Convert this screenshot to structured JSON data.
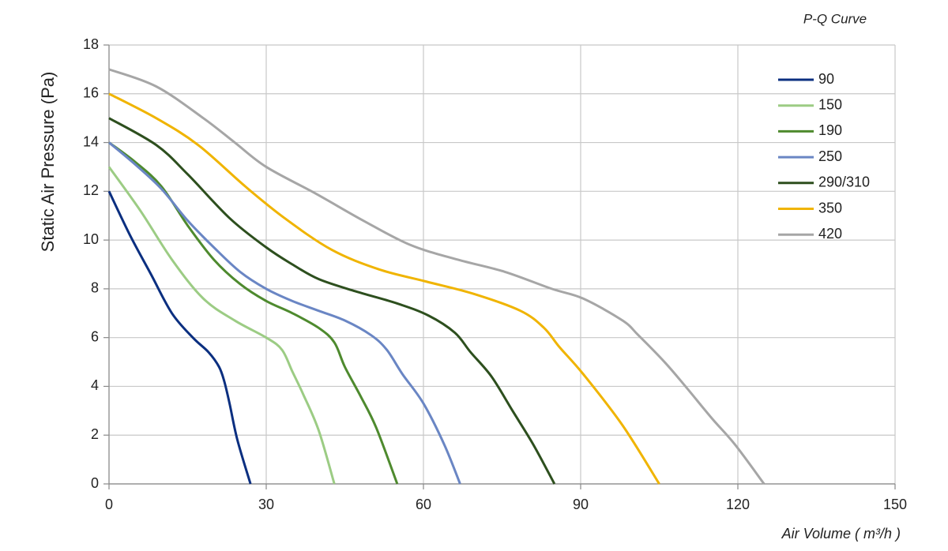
{
  "chart_data": {
    "type": "line",
    "title": "P-Q Curve",
    "x_label": "Air Volume ( m³/h )",
    "y_label": "Static Air Pressure  (Pa)",
    "xlim": [
      0,
      150
    ],
    "xticks": [
      0,
      30,
      60,
      90,
      120,
      150
    ],
    "ylim": [
      0,
      18
    ],
    "yticks": [
      0,
      2,
      4,
      6,
      8,
      10,
      12,
      14,
      16,
      18
    ],
    "grid": true,
    "legend": "upper right",
    "series": [
      {
        "name": "90",
        "color": "#0b2f80",
        "x": [
          0,
          4,
          8,
          12,
          16,
          19,
          21,
          22,
          23,
          24.5,
          27
        ],
        "values": [
          12,
          10.2,
          8.6,
          7,
          6,
          5.4,
          4.8,
          4.2,
          3.3,
          1.8,
          0
        ]
      },
      {
        "name": "150",
        "color": "#9ccc84",
        "x": [
          0,
          6,
          12,
          18,
          24,
          30,
          33,
          35,
          37,
          40,
          43
        ],
        "values": [
          13,
          11.2,
          9.2,
          7.6,
          6.7,
          6,
          5.5,
          4.6,
          3.7,
          2.2,
          0
        ]
      },
      {
        "name": "190",
        "color": "#4e8a2e",
        "x": [
          0,
          5,
          10,
          15,
          20,
          25,
          30,
          35,
          40,
          43,
          45,
          48,
          51,
          55
        ],
        "values": [
          14,
          13.2,
          12.2,
          10.6,
          9.2,
          8.2,
          7.5,
          7,
          6.4,
          5.8,
          4.8,
          3.6,
          2.3,
          0
        ]
      },
      {
        "name": "250",
        "color": "#6a86c4",
        "x": [
          0,
          5,
          10,
          15,
          20,
          25,
          30,
          35,
          40,
          45,
          50,
          53,
          56,
          60,
          64,
          67
        ],
        "values": [
          14,
          13.1,
          12.1,
          10.8,
          9.7,
          8.7,
          8,
          7.5,
          7.1,
          6.7,
          6.1,
          5.5,
          4.5,
          3.3,
          1.6,
          0
        ]
      },
      {
        "name": "290/310",
        "color": "#2d4f1e",
        "x": [
          0,
          9,
          15,
          23,
          30,
          35,
          40,
          47,
          55,
          61,
          66,
          69,
          73,
          77,
          81,
          85
        ],
        "values": [
          15,
          13.9,
          12.7,
          10.9,
          9.7,
          9,
          8.4,
          7.9,
          7.4,
          6.9,
          6.2,
          5.4,
          4.4,
          3,
          1.6,
          0
        ]
      },
      {
        "name": "350",
        "color": "#f0b400",
        "x": [
          0,
          9,
          17,
          26,
          33.5,
          42.5,
          51.5,
          60.5,
          69.5,
          78.5,
          83,
          86,
          90.5,
          98,
          105
        ],
        "values": [
          16,
          15,
          13.9,
          12.2,
          10.9,
          9.6,
          8.8,
          8.3,
          7.8,
          7.1,
          6.4,
          5.6,
          4.5,
          2.4,
          0
        ]
      },
      {
        "name": "420",
        "color": "#a6a6a6",
        "x": [
          0,
          9,
          18,
          24,
          30,
          39.5,
          48.5,
          57.5,
          66.5,
          75.5,
          84.5,
          90.5,
          98,
          101,
          106,
          110,
          115,
          119.5,
          125
        ],
        "values": [
          17,
          16.3,
          15,
          14,
          13,
          11.9,
          10.8,
          9.8,
          9.2,
          8.7,
          8,
          7.6,
          6.7,
          6.1,
          5,
          4,
          2.7,
          1.6,
          0
        ]
      }
    ]
  }
}
